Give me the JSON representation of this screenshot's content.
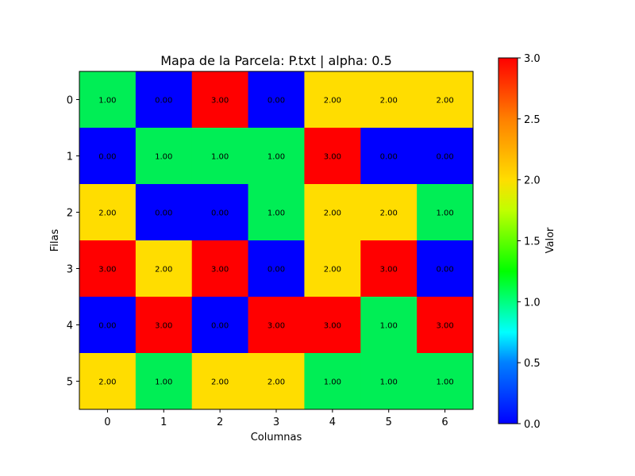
{
  "chart_data": {
    "type": "heatmap",
    "title": "Mapa de la Parcela: P.txt | alpha: 0.5",
    "xlabel": "Columnas",
    "ylabel": "Filas",
    "x_ticks": [
      "0",
      "1",
      "2",
      "3",
      "4",
      "5",
      "6"
    ],
    "y_ticks": [
      "0",
      "1",
      "2",
      "3",
      "4",
      "5"
    ],
    "values": [
      [
        1.0,
        0.0,
        3.0,
        0.0,
        2.0,
        2.0,
        2.0
      ],
      [
        0.0,
        1.0,
        1.0,
        1.0,
        3.0,
        0.0,
        0.0
      ],
      [
        2.0,
        0.0,
        0.0,
        1.0,
        2.0,
        2.0,
        1.0
      ],
      [
        3.0,
        2.0,
        3.0,
        0.0,
        2.0,
        3.0,
        0.0
      ],
      [
        0.0,
        3.0,
        0.0,
        3.0,
        3.0,
        1.0,
        3.0
      ],
      [
        2.0,
        1.0,
        2.0,
        2.0,
        1.0,
        1.0,
        1.0
      ]
    ],
    "cell_labels": [
      [
        "1.00",
        "0.00",
        "3.00",
        "0.00",
        "2.00",
        "2.00",
        "2.00"
      ],
      [
        "0.00",
        "1.00",
        "1.00",
        "1.00",
        "3.00",
        "0.00",
        "0.00"
      ],
      [
        "2.00",
        "0.00",
        "0.00",
        "1.00",
        "2.00",
        "2.00",
        "1.00"
      ],
      [
        "3.00",
        "2.00",
        "3.00",
        "0.00",
        "2.00",
        "3.00",
        "0.00"
      ],
      [
        "0.00",
        "3.00",
        "0.00",
        "3.00",
        "3.00",
        "1.00",
        "3.00"
      ],
      [
        "2.00",
        "1.00",
        "2.00",
        "2.00",
        "1.00",
        "1.00",
        "1.00"
      ]
    ],
    "colorbar": {
      "label": "Valor",
      "range": [
        0,
        3
      ],
      "ticks": [
        "0.0",
        "0.5",
        "1.0",
        "1.5",
        "2.0",
        "2.5",
        "3.0"
      ],
      "colormap": "blue-cyan-green-yellow-red"
    },
    "cell_colors": {
      "0": "#0000ff",
      "1": "#00ee55",
      "2": "#ffdd00",
      "3": "#ff0000"
    },
    "grid": false
  }
}
